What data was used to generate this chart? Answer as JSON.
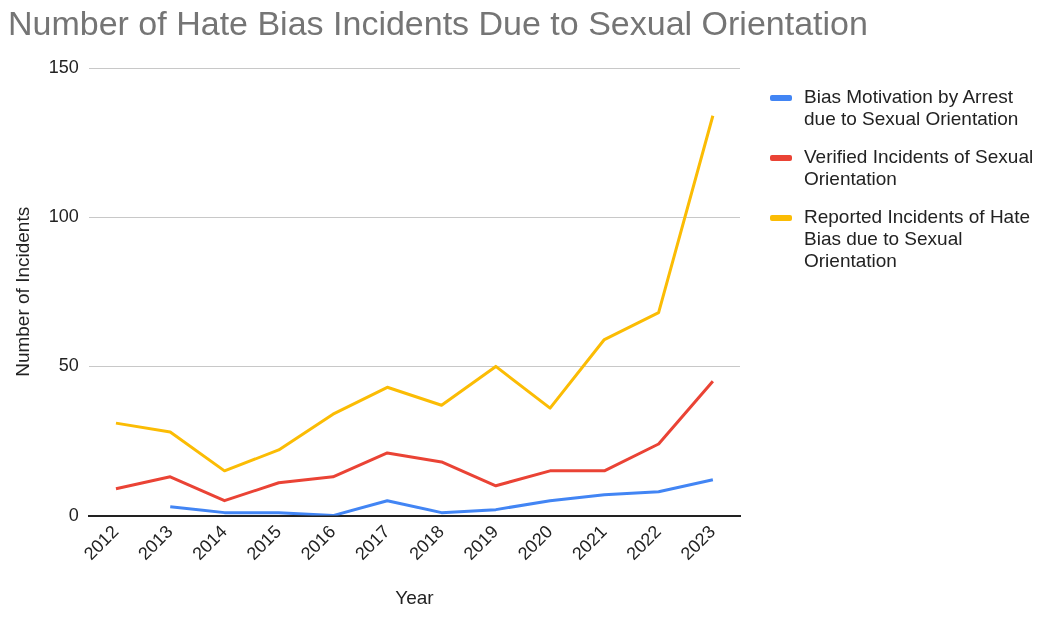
{
  "chart_data": {
    "type": "line",
    "title": "Number of Hate Bias Incidents Due to Sexual Orientation",
    "xlabel": "Year",
    "ylabel": "Number of Incidents",
    "categories": [
      "2012",
      "2013",
      "2014",
      "2015",
      "2016",
      "2017",
      "2018",
      "2019",
      "2020",
      "2021",
      "2022",
      "2023"
    ],
    "series": [
      {
        "name": "Bias Motivation by Arrest due to Sexual Orientation",
        "color": "#4285f4",
        "values": [
          null,
          3,
          1,
          1,
          0,
          5,
          1,
          2,
          5,
          7,
          8,
          12
        ]
      },
      {
        "name": "Verified Incidents of Sexual Orientation",
        "color": "#ea4335",
        "values": [
          9,
          13,
          5,
          11,
          13,
          21,
          18,
          10,
          15,
          15,
          24,
          45
        ]
      },
      {
        "name": "Reported Incidents of Hate Bias due to Sexual Orientation",
        "color": "#fbbc04",
        "values": [
          31,
          28,
          15,
          22,
          34,
          43,
          37,
          50,
          36,
          59,
          68,
          134
        ]
      }
    ],
    "ylim": [
      0,
      150
    ],
    "yticks": [
      0,
      50,
      100,
      150
    ],
    "grid": "y",
    "legend": "right",
    "marker": "none",
    "line_style": "solid"
  }
}
